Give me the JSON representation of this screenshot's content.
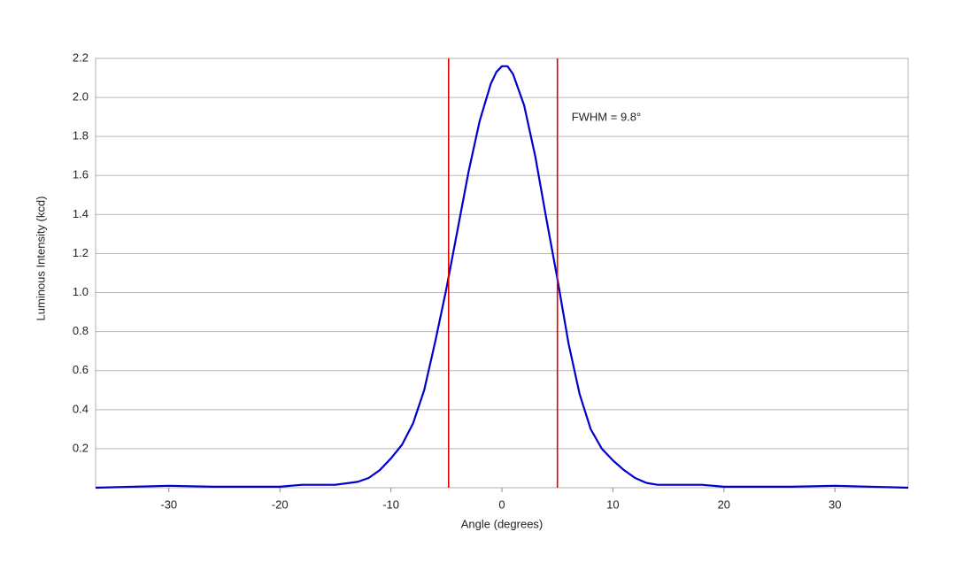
{
  "chart_data": {
    "type": "line",
    "x_label": "Angle (degrees)",
    "y_label": "Luminous Intensity (kcd)",
    "annotation": "FWHM = 9.8°",
    "x": [
      -36.6,
      -30,
      -26,
      -20,
      -18,
      -15,
      -13,
      -12,
      -11,
      -10,
      -9,
      -8,
      -7,
      -6,
      -5,
      -4,
      -3,
      -2,
      -1,
      -0.5,
      0,
      0.5,
      1,
      2,
      3,
      4,
      5,
      6,
      7,
      8,
      9,
      10,
      11,
      12,
      13,
      14,
      18,
      20,
      26,
      30,
      36.6
    ],
    "series": [
      {
        "color": "#0000cc",
        "values": [
          0.0,
          0.01,
          0.005,
          0.005,
          0.015,
          0.015,
          0.03,
          0.05,
          0.09,
          0.15,
          0.22,
          0.33,
          0.5,
          0.75,
          1.02,
          1.32,
          1.62,
          1.88,
          2.07,
          2.13,
          2.16,
          2.16,
          2.12,
          1.96,
          1.7,
          1.38,
          1.07,
          0.74,
          0.48,
          0.3,
          0.2,
          0.14,
          0.09,
          0.05,
          0.025,
          0.015,
          0.015,
          0.005,
          0.005,
          0.01,
          0.0
        ]
      }
    ],
    "vlines": [
      -4.8,
      5.0
    ],
    "vline_color": "#e00000",
    "xlim": [
      -36.6,
      36.6
    ],
    "ylim": [
      0,
      2.2
    ],
    "xticks": [
      -30,
      -20,
      -10,
      0,
      10,
      20,
      30
    ],
    "yticks": [
      0.2,
      0.4,
      0.6,
      0.8,
      {
        "value": 1,
        "label": "1.0"
      },
      1.2,
      1.4,
      1.6,
      1.8,
      {
        "value": 2,
        "label": "2.0"
      },
      2.2
    ],
    "grid": true
  }
}
